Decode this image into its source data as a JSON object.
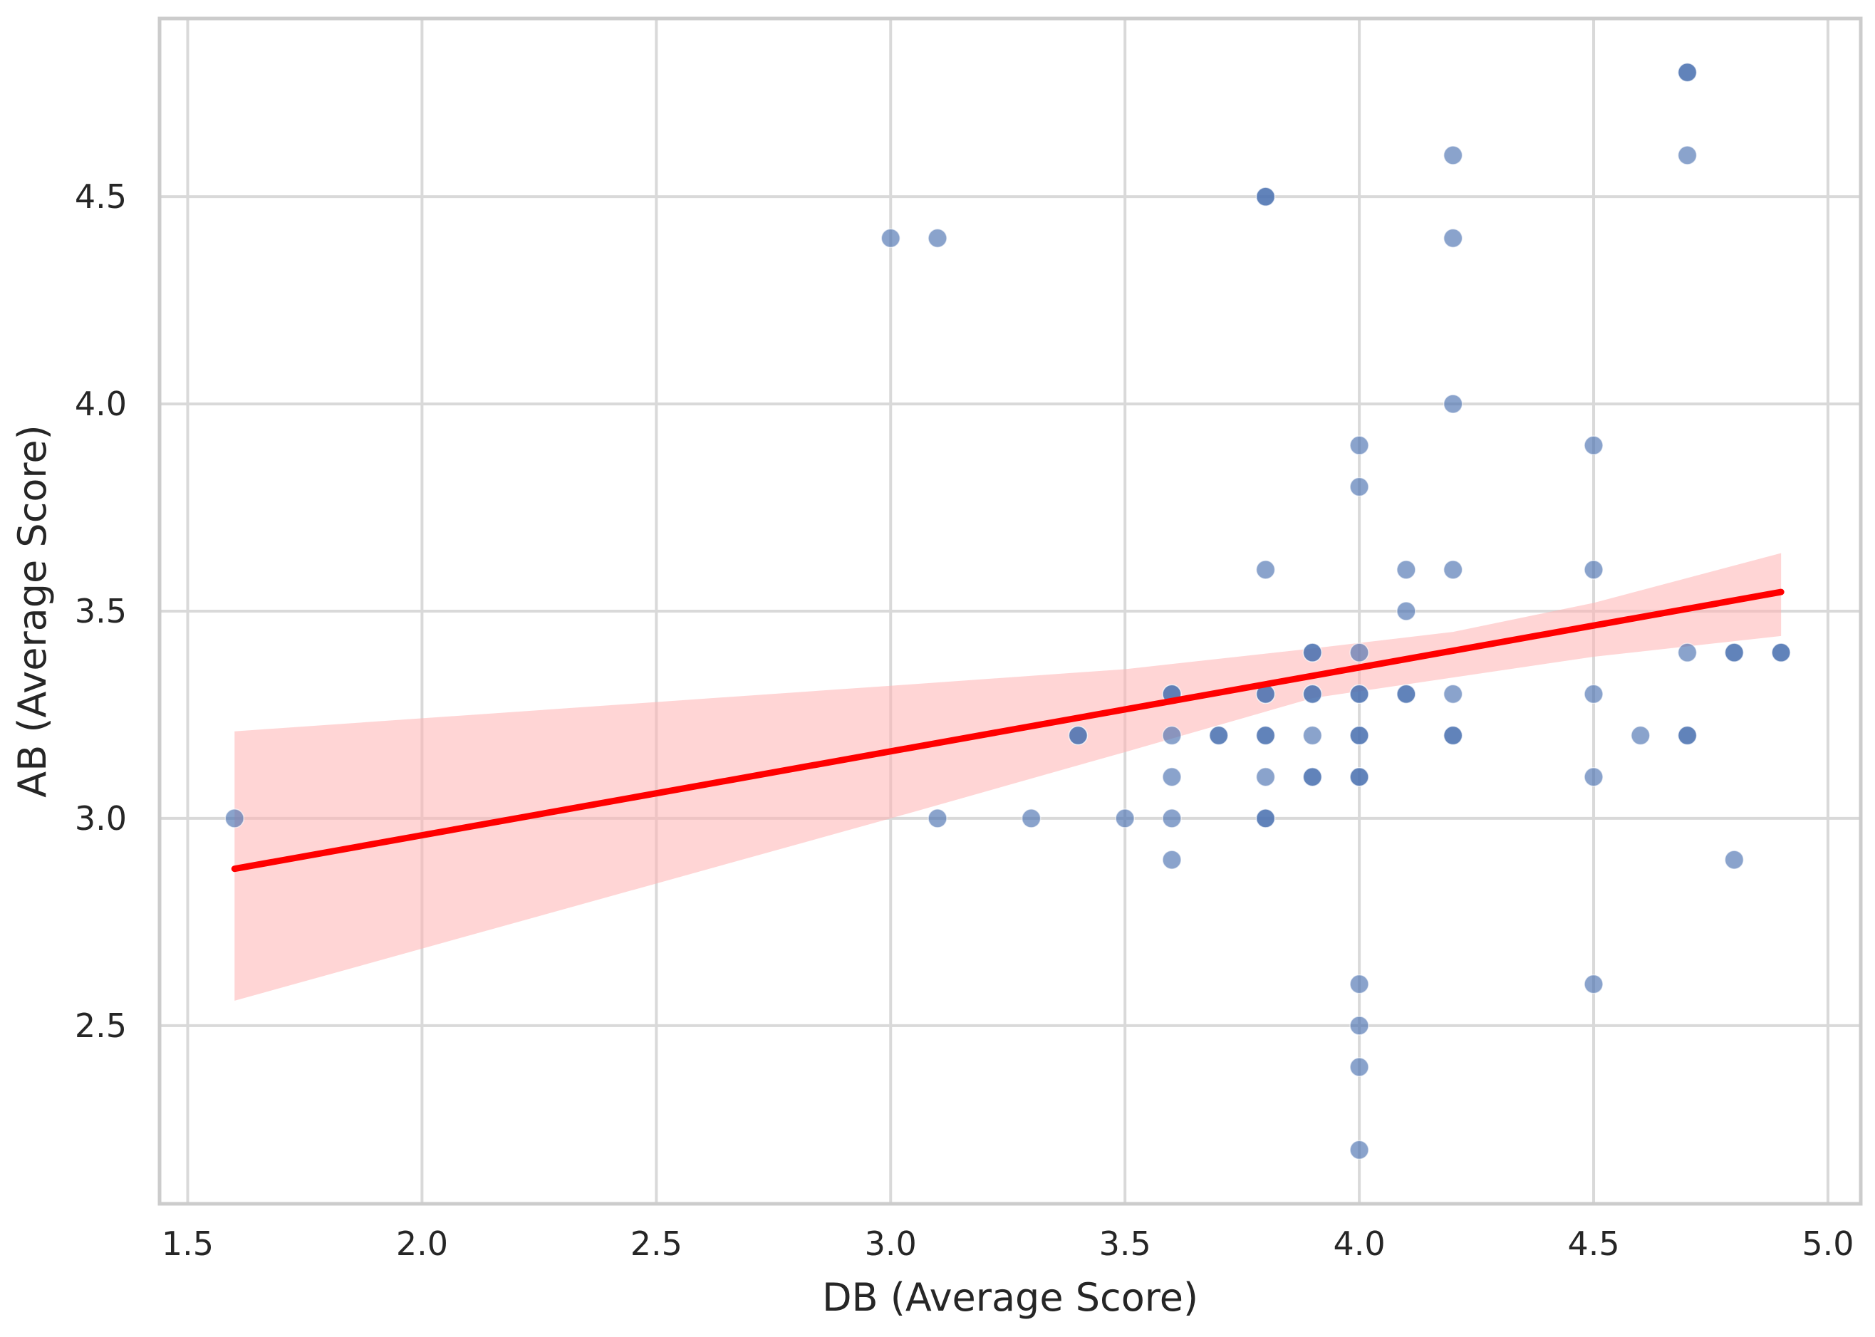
{
  "chart_data": {
    "type": "scatter",
    "xlabel": "DB (Average Score)",
    "ylabel": "AB (Average Score)",
    "xlim": [
      1.44,
      5.07
    ],
    "ylim": [
      2.07,
      4.93
    ],
    "xticks": [
      1.5,
      2.0,
      2.5,
      3.0,
      3.5,
      4.0,
      4.5,
      5.0
    ],
    "xtick_labels": [
      "1.5",
      "2.0",
      "2.5",
      "3.0",
      "3.5",
      "4.0",
      "4.5",
      "5.0"
    ],
    "yticks": [
      2.5,
      3.0,
      3.5,
      4.0,
      4.5
    ],
    "ytick_labels": [
      "2.5",
      "3.0",
      "3.5",
      "4.0",
      "4.5"
    ],
    "grid": true,
    "colors": {
      "point": "#4c72b0",
      "regression_line": "#ff0000",
      "confidence_band": "#ffb3b3",
      "grid": "#d9d9d9",
      "frame": "#cccccc"
    },
    "points": [
      {
        "x": 1.6,
        "y": 3.0
      },
      {
        "x": 3.0,
        "y": 4.4
      },
      {
        "x": 3.1,
        "y": 4.4
      },
      {
        "x": 3.1,
        "y": 3.0
      },
      {
        "x": 3.3,
        "y": 3.0
      },
      {
        "x": 3.5,
        "y": 3.0
      },
      {
        "x": 3.4,
        "y": 3.2
      },
      {
        "x": 3.4,
        "y": 3.2
      },
      {
        "x": 3.6,
        "y": 3.3
      },
      {
        "x": 3.6,
        "y": 3.3
      },
      {
        "x": 3.6,
        "y": 3.2
      },
      {
        "x": 3.6,
        "y": 3.1
      },
      {
        "x": 3.6,
        "y": 3.0
      },
      {
        "x": 3.6,
        "y": 2.9
      },
      {
        "x": 3.7,
        "y": 3.2
      },
      {
        "x": 3.7,
        "y": 3.2
      },
      {
        "x": 3.8,
        "y": 4.5
      },
      {
        "x": 3.8,
        "y": 4.5
      },
      {
        "x": 3.8,
        "y": 3.6
      },
      {
        "x": 3.8,
        "y": 3.3
      },
      {
        "x": 3.8,
        "y": 3.3
      },
      {
        "x": 3.8,
        "y": 3.2
      },
      {
        "x": 3.8,
        "y": 3.2
      },
      {
        "x": 3.8,
        "y": 3.1
      },
      {
        "x": 3.8,
        "y": 3.0
      },
      {
        "x": 3.8,
        "y": 3.0
      },
      {
        "x": 3.9,
        "y": 3.4
      },
      {
        "x": 3.9,
        "y": 3.4
      },
      {
        "x": 3.9,
        "y": 3.3
      },
      {
        "x": 3.9,
        "y": 3.3
      },
      {
        "x": 3.9,
        "y": 3.2
      },
      {
        "x": 3.9,
        "y": 3.1
      },
      {
        "x": 3.9,
        "y": 3.1
      },
      {
        "x": 4.0,
        "y": 3.9
      },
      {
        "x": 4.0,
        "y": 3.8
      },
      {
        "x": 4.0,
        "y": 3.4
      },
      {
        "x": 4.0,
        "y": 3.3
      },
      {
        "x": 4.0,
        "y": 3.3
      },
      {
        "x": 4.0,
        "y": 3.2
      },
      {
        "x": 4.0,
        "y": 3.2
      },
      {
        "x": 4.0,
        "y": 3.1
      },
      {
        "x": 4.0,
        "y": 3.1
      },
      {
        "x": 4.0,
        "y": 2.6
      },
      {
        "x": 4.0,
        "y": 2.5
      },
      {
        "x": 4.0,
        "y": 2.4
      },
      {
        "x": 4.0,
        "y": 2.2
      },
      {
        "x": 4.1,
        "y": 3.6
      },
      {
        "x": 4.1,
        "y": 3.5
      },
      {
        "x": 4.1,
        "y": 3.3
      },
      {
        "x": 4.1,
        "y": 3.3
      },
      {
        "x": 4.2,
        "y": 4.6
      },
      {
        "x": 4.2,
        "y": 4.4
      },
      {
        "x": 4.2,
        "y": 4.0
      },
      {
        "x": 4.2,
        "y": 3.6
      },
      {
        "x": 4.2,
        "y": 3.3
      },
      {
        "x": 4.2,
        "y": 3.2
      },
      {
        "x": 4.2,
        "y": 3.2
      },
      {
        "x": 4.5,
        "y": 3.9
      },
      {
        "x": 4.5,
        "y": 3.6
      },
      {
        "x": 4.5,
        "y": 3.3
      },
      {
        "x": 4.5,
        "y": 3.1
      },
      {
        "x": 4.5,
        "y": 2.6
      },
      {
        "x": 4.6,
        "y": 3.2
      },
      {
        "x": 4.7,
        "y": 4.8
      },
      {
        "x": 4.7,
        "y": 4.8
      },
      {
        "x": 4.7,
        "y": 4.6
      },
      {
        "x": 4.7,
        "y": 3.4
      },
      {
        "x": 4.7,
        "y": 3.2
      },
      {
        "x": 4.7,
        "y": 3.2
      },
      {
        "x": 4.8,
        "y": 3.4
      },
      {
        "x": 4.8,
        "y": 3.4
      },
      {
        "x": 4.8,
        "y": 2.9
      },
      {
        "x": 4.9,
        "y": 3.4
      },
      {
        "x": 4.9,
        "y": 3.4
      }
    ],
    "regression": {
      "x_range": [
        1.6,
        4.9
      ],
      "slope": 0.2024,
      "intercept": 2.5545,
      "ci_band": [
        {
          "x": 1.6,
          "lower": 2.56,
          "upper": 3.21
        },
        {
          "x": 3.0,
          "lower": 3.0,
          "upper": 3.32
        },
        {
          "x": 3.5,
          "lower": 3.16,
          "upper": 3.36
        },
        {
          "x": 3.9,
          "lower": 3.29,
          "upper": 3.41
        },
        {
          "x": 4.2,
          "lower": 3.34,
          "upper": 3.45
        },
        {
          "x": 4.5,
          "lower": 3.39,
          "upper": 3.52
        },
        {
          "x": 4.9,
          "lower": 3.44,
          "upper": 3.64
        }
      ]
    }
  }
}
